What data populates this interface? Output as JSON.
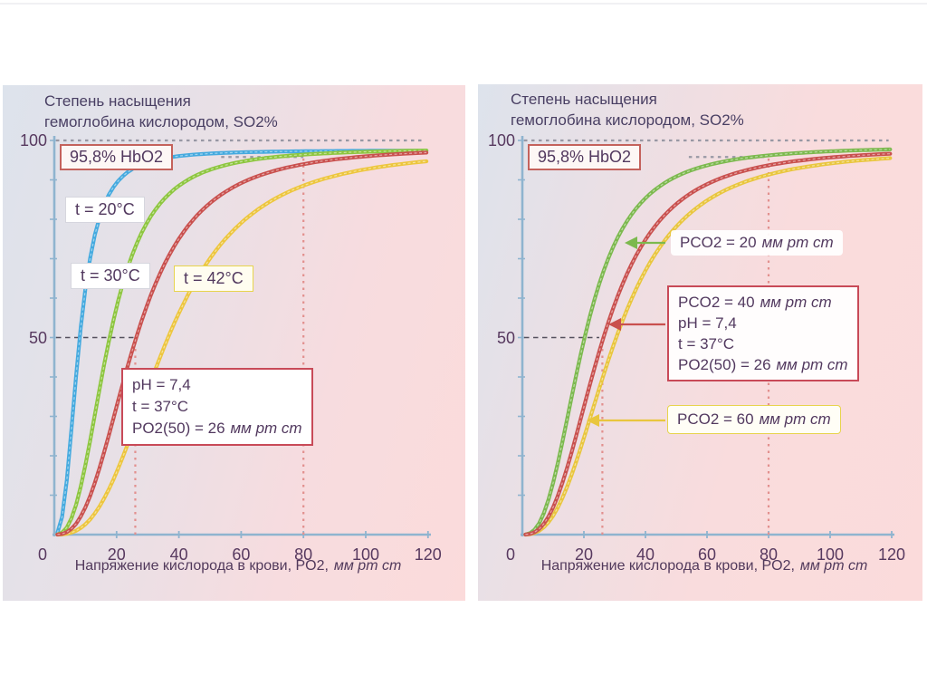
{
  "units": {
    "mmhg": "мм рт ст"
  },
  "colors": {
    "axis": "#8fb4cf",
    "dash_gray": "#9898a4",
    "dash_dark": "#55515e",
    "dash_pink": "#e2908e",
    "text": "#523a5c"
  },
  "panels": [
    {
      "title_line1": "Степень насыщения",
      "title_line2": "гемоглобина кислородом, SO2%",
      "hbo2_label": "95,8% HbO2",
      "xaxis_label": "Напряжение кислорода в крови, PO2,",
      "labels": {
        "t20": "t = 20°C",
        "t30": "t = 30°C",
        "t42": "t = 42°C",
        "ph_line1": "pH = 7,4",
        "ph_line2": "t = 37°C",
        "ph_line3": "PO2(50) = 26"
      }
    },
    {
      "title_line1": "Степень насыщения",
      "title_line2": "гемоглобина кислородом, SO2%",
      "hbo2_label": "95,8% HbO2",
      "xaxis_label": "Напряжение кислорода в крови, PO2,",
      "labels": {
        "pco2_20": "PCO2 = 20",
        "box_line1": "PCO2 = 40",
        "box_line2": "pH = 7,4",
        "box_line3": "t = 37°C",
        "box_line4": "PO2(50) = 26",
        "pco2_60": "PCO2 = 60"
      }
    }
  ],
  "chart_data": [
    {
      "type": "line",
      "title": "Степень насыщения гемоглобина кислородом, SO2%",
      "xlabel": "Напряжение кислорода в крови, PO2, мм рт ст",
      "ylabel": "SO2%",
      "xlim": [
        0,
        120
      ],
      "ylim": [
        0,
        100
      ],
      "x_ticks": [
        0,
        20,
        40,
        60,
        80,
        100,
        120
      ],
      "y_ticks": [
        0,
        50,
        100
      ],
      "y_minor_step": 10,
      "grid": false,
      "series": [
        {
          "name": "t = 20°C",
          "color": "#45aadf",
          "p50": 8,
          "hill": 2.6,
          "smax": 97.5,
          "z": 1
        },
        {
          "name": "t = 30°C",
          "color": "#8dc63f",
          "p50": 17.5,
          "hill": 2.7,
          "smax": 98.0,
          "z": 2
        },
        {
          "name": "t = 42°C",
          "color": "#edc63e",
          "p50": 36,
          "hill": 2.8,
          "smax": 98.0,
          "z": 3
        },
        {
          "name": "pH = 7,4; t = 37°C; PO2(50) = 26 мм рт ст",
          "color": "#c9504e",
          "p50": 26,
          "hill": 2.7,
          "smax": 98.5,
          "z": 4
        }
      ],
      "reference_lines": [
        {
          "axis": "y",
          "value": 100,
          "x_from": 0,
          "x_to": 119,
          "style": "gray"
        },
        {
          "axis": "y",
          "value": 95.8,
          "x_from": 53,
          "x_to": 80,
          "style": "gray"
        },
        {
          "axis": "y",
          "value": 50,
          "x_from": 0,
          "x_to": 26,
          "style": "dark"
        },
        {
          "axis": "x",
          "value": 26,
          "y_from": 0,
          "y_to": 50,
          "style": "pink"
        },
        {
          "axis": "x",
          "value": 80,
          "y_from": 0,
          "y_to": 95.8,
          "style": "pink"
        }
      ],
      "key_points": {
        "p50_normal": 26,
        "so2_at_po2_80": 95.8
      }
    },
    {
      "type": "line",
      "title": "Степень насыщения гемоглобина кислородом, SO2%",
      "xlabel": "Напряжение кислорода в крови, PO2, мм рт ст",
      "ylabel": "SO2%",
      "xlim": [
        0,
        120
      ],
      "ylim": [
        0,
        100
      ],
      "x_ticks": [
        0,
        20,
        40,
        60,
        80,
        100,
        120
      ],
      "y_ticks": [
        0,
        50,
        100
      ],
      "y_minor_step": 10,
      "grid": false,
      "series": [
        {
          "name": "PCO2 = 20 мм рт ст",
          "color": "#7cb94e",
          "p50": 20,
          "hill": 2.7,
          "smax": 98.5,
          "z": 1
        },
        {
          "name": "PCO2 = 40 мм рт ст; pH = 7,4; t = 37°C; PO2(50) = 26 мм рт ст",
          "color": "#c9504e",
          "p50": 26,
          "hill": 2.7,
          "smax": 98.2,
          "z": 3
        },
        {
          "name": "PCO2 = 60 мм рт ст",
          "color": "#e9c63e",
          "p50": 30,
          "hill": 2.7,
          "smax": 97.8,
          "z": 2
        }
      ],
      "reference_lines": [
        {
          "axis": "y",
          "value": 100,
          "x_from": 0,
          "x_to": 119,
          "style": "gray"
        },
        {
          "axis": "y",
          "value": 95.8,
          "x_from": 53.5,
          "x_to": 80,
          "style": "gray"
        },
        {
          "axis": "y",
          "value": 50,
          "x_from": 0,
          "x_to": 25,
          "style": "dark"
        },
        {
          "axis": "x",
          "value": 26,
          "y_from": 0,
          "y_to": 50,
          "style": "pink"
        },
        {
          "axis": "x",
          "value": 80,
          "y_from": 0,
          "y_to": 95.8,
          "style": "pink"
        }
      ],
      "key_points": {
        "p50_normal": 26,
        "so2_at_po2_80": 95.8
      }
    }
  ]
}
